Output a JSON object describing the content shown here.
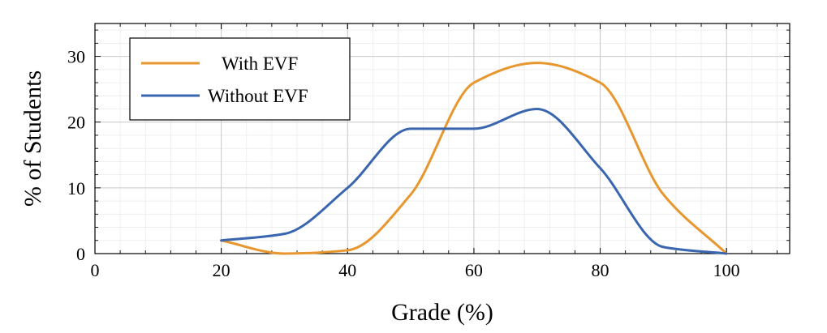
{
  "chart_data": {
    "type": "line",
    "xlabel": "Grade (%)",
    "ylabel": "% of Students",
    "xlim": [
      0,
      110
    ],
    "ylim": [
      0,
      35
    ],
    "x_ticks": [
      0,
      20,
      40,
      60,
      80,
      100
    ],
    "y_ticks": [
      0,
      10,
      20,
      30
    ],
    "x_tick_labels": [
      "0",
      "20",
      "40",
      "60",
      "80",
      "100"
    ],
    "y_tick_labels": [
      "0",
      "10",
      "20",
      "30"
    ],
    "grid": true,
    "legend_position": "top-left",
    "x": [
      20,
      30,
      40,
      50,
      60,
      70,
      80,
      90,
      100
    ],
    "series": [
      {
        "name": "With EVF",
        "color": "#E8962E",
        "values": [
          2,
          0,
          0.5,
          9,
          26,
          29,
          26,
          9,
          0
        ]
      },
      {
        "name": "Without EVF",
        "color": "#3A66B0",
        "values": [
          2,
          3,
          10,
          19,
          19,
          22,
          13,
          1,
          0
        ]
      }
    ]
  }
}
